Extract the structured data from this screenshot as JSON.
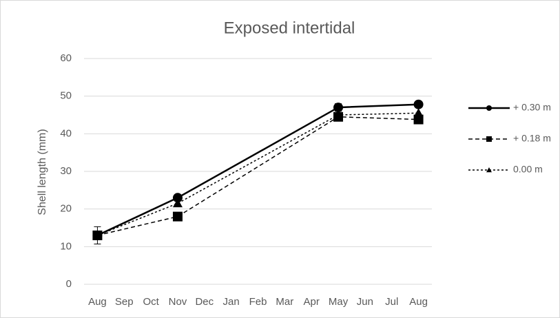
{
  "chart_data": {
    "type": "line",
    "title": "Exposed intertidal",
    "y_label": "Shell length (mm)",
    "categories": [
      "Aug",
      "Sep",
      "Oct",
      "Nov",
      "Dec",
      "Jan",
      "Feb",
      "Mar",
      "Apr",
      "May",
      "Jun",
      "Jul",
      "Aug"
    ],
    "span_gaps": true,
    "series": [
      {
        "name": "+ 0.30 m",
        "color": "#000000",
        "dash": "solid",
        "marker": "circle",
        "values": [
          13,
          null,
          null,
          23,
          null,
          null,
          null,
          null,
          null,
          47,
          null,
          null,
          47.8
        ],
        "errors": [
          2.3,
          null,
          null,
          0.8,
          null,
          null,
          null,
          null,
          null,
          1,
          null,
          null,
          0.8
        ]
      },
      {
        "name": "+ 0.18 m",
        "color": "#000000",
        "dash": "dashed",
        "marker": "square",
        "values": [
          13,
          null,
          null,
          18,
          null,
          null,
          null,
          null,
          null,
          44.5,
          null,
          null,
          43.8
        ]
      },
      {
        "name": "0.00 m",
        "color": "#000000",
        "dash": "dotted",
        "marker": "triangle",
        "values": [
          13,
          null,
          null,
          21.5,
          null,
          null,
          null,
          null,
          null,
          45,
          null,
          null,
          45.5
        ]
      }
    ],
    "ylim": [
      0,
      60
    ],
    "yticks": [
      0,
      10,
      20,
      30,
      40,
      50,
      60
    ],
    "grid": true,
    "legend": "right"
  }
}
